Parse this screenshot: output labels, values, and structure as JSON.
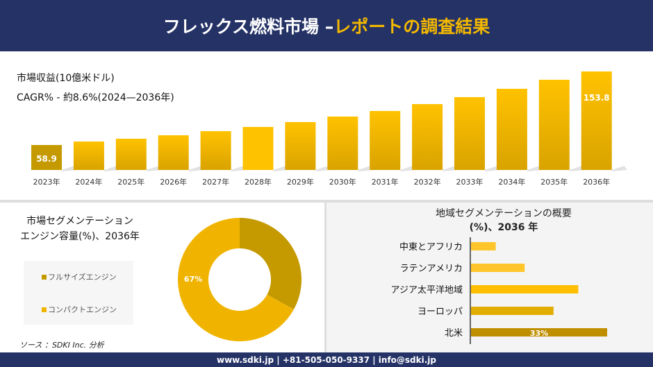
{
  "header": {
    "title_main": "フレックス燃料市場 –",
    "title_accent": "レポートの調査結果"
  },
  "colors": {
    "navy": "#253266",
    "gold_dark": "#c49a00",
    "gold": "#f0b400",
    "gold_light": "#ffc61e"
  },
  "chart_data": [
    {
      "type": "bar",
      "title": "市場収益(10億米ドル)",
      "subtitle": "CAGR% - 約8.6%(2024—2036年)",
      "categories": [
        "2023年",
        "2024年",
        "2025年",
        "2026年",
        "2027年",
        "2028年",
        "2029年",
        "2030年",
        "2031年",
        "2032年",
        "2033年",
        "2034年",
        "2035年",
        "2036年"
      ],
      "values": [
        58.9,
        63.4,
        67.0,
        71.5,
        76.8,
        82.2,
        88.5,
        95.6,
        102.8,
        111.7,
        120.7,
        131.4,
        143.1,
        153.8
      ],
      "data_labels": {
        "0": "58.9",
        "13": "153.8"
      },
      "grid": false
    },
    {
      "type": "pie",
      "title_line1": "市場セグメンテーション",
      "title_line2": "エンジン容量(%)、2036年",
      "labels": [
        "フルサイズエンジン",
        "コンパクトエンジン"
      ],
      "values": [
        33,
        67
      ],
      "colors": [
        "#c49a00",
        "#f0b400"
      ],
      "data_labels": {
        "1": "67%"
      },
      "donut": true
    },
    {
      "type": "bar",
      "orientation": "horizontal",
      "title_line1": "地域セグメンテーションの概要",
      "title_line2": "(%)、2036 年",
      "categories": [
        "中東とアフリカ",
        "ラテンアメリカ",
        "アジア太平洋地域",
        "ヨーロッパ",
        "北米"
      ],
      "values": [
        6,
        13,
        26,
        20,
        33
      ],
      "colors": [
        "#ffc52a",
        "#ffc52a",
        "#ffbf00",
        "#e0ad00",
        "#c08f00"
      ],
      "data_labels": {
        "4": "33%"
      }
    }
  ],
  "source": "ソース ：SDKI Inc. 分析",
  "footer": "www.sdki.jp | +81-505-050-9337 | info@sdki.jp"
}
